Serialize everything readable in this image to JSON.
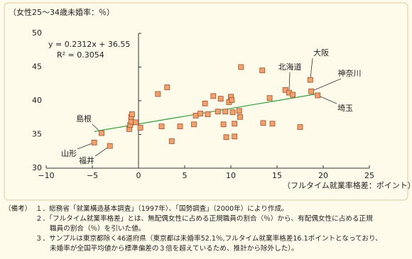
{
  "chart_data": {
    "type": "scatter",
    "y_label": "（女性25～34歳未婚率：％）",
    "x_label": "（フルタイム就業率格差：ポイント）",
    "equation": "y = 0.2312x + 36.55",
    "r_squared": "R² = 0.3054",
    "trendline": {
      "slope": 0.2312,
      "intercept": 36.55,
      "color": "#2e9a3a"
    },
    "color": "#f4a06c",
    "x": [
      -4.8,
      -3.1,
      -4.0,
      -1.0,
      -0.9,
      -0.8,
      -0.8,
      -0.7,
      -0.3,
      0.2,
      2.1,
      3.1,
      2.5,
      3.6,
      4.5,
      6.0,
      6.2,
      6.7,
      7.2,
      7.5,
      8.1,
      8.6,
      8.9,
      9.2,
      9.4,
      9.5,
      9.8,
      10.0,
      10.1,
      10.2,
      10.4,
      10.4,
      10.9,
      11.0,
      11.1,
      13.4,
      13.5,
      14.2,
      14.5,
      15.9,
      16.3,
      16.7,
      17.5,
      18.6,
      18.7,
      19.4
    ],
    "values": [
      33.8,
      33.3,
      35.2,
      35.8,
      36.4,
      36.9,
      37.6,
      38.0,
      36.8,
      36.0,
      41.0,
      42.0,
      36.2,
      34.0,
      36.2,
      36.5,
      37.8,
      38.1,
      39.6,
      38.0,
      40.7,
      38.4,
      40.3,
      36.5,
      38.4,
      34.6,
      39.8,
      40.6,
      40.1,
      38.3,
      36.6,
      34.7,
      38.5,
      37.6,
      45.0,
      44.5,
      36.7,
      40.4,
      36.6,
      41.6,
      41.2,
      40.9,
      36.1,
      43.1,
      41.4,
      40.8
    ],
    "point_labels": [
      "山形",
      "福井",
      "島根",
      null,
      null,
      null,
      null,
      null,
      null,
      null,
      null,
      null,
      null,
      null,
      null,
      null,
      null,
      null,
      null,
      null,
      null,
      null,
      null,
      null,
      null,
      null,
      null,
      null,
      null,
      null,
      null,
      null,
      null,
      null,
      null,
      null,
      null,
      null,
      null,
      null,
      "北海道",
      null,
      null,
      "大阪",
      "神奈川",
      "埼玉"
    ],
    "xlim": [
      -10,
      25
    ],
    "ylim": [
      30,
      50
    ],
    "xticks": [
      {
        "value": -10,
        "label": "−10"
      },
      {
        "value": -5,
        "label": "−5"
      },
      0,
      5,
      10,
      15,
      20,
      25
    ],
    "yticks": [
      30,
      35,
      40,
      45,
      50
    ]
  },
  "notes": {
    "label": "（備考）",
    "lines": [
      "１．総務省「就業構造基本調査」（1997年）、「国勢調査」（2000年）により作成。",
      "２．「フルタイム就業率格差」とは、無配偶女性に占める正規職員の割合（％）から、有配偶女性に占める正規",
      "職員の割合（％）を引いた値。",
      "３．サンプルは東京都除く46道府県（東京都は未婚率52.1％,フルタイム就業率格差16.1ポイントとなっており、",
      "未婚率が全国平均値から標準偏差の３倍を超えているため、推計から除外した）。"
    ]
  }
}
